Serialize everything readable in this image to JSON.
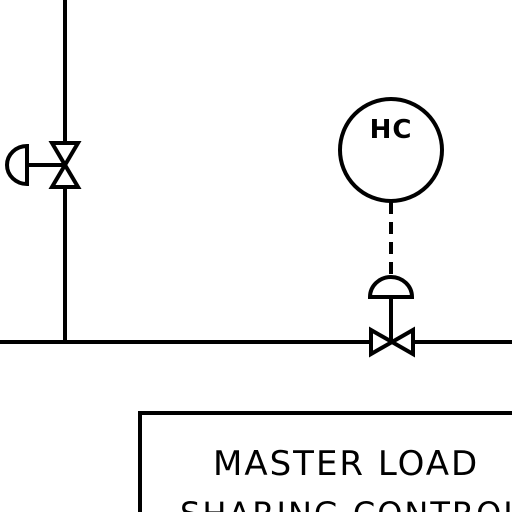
{
  "instrument": {
    "tag": "HC"
  },
  "controller_box": {
    "title": "MASTER LOAD",
    "subtitle": "SHARING CONTROLLER"
  },
  "colors": {
    "line": "#000000",
    "background": "#ffffff"
  }
}
